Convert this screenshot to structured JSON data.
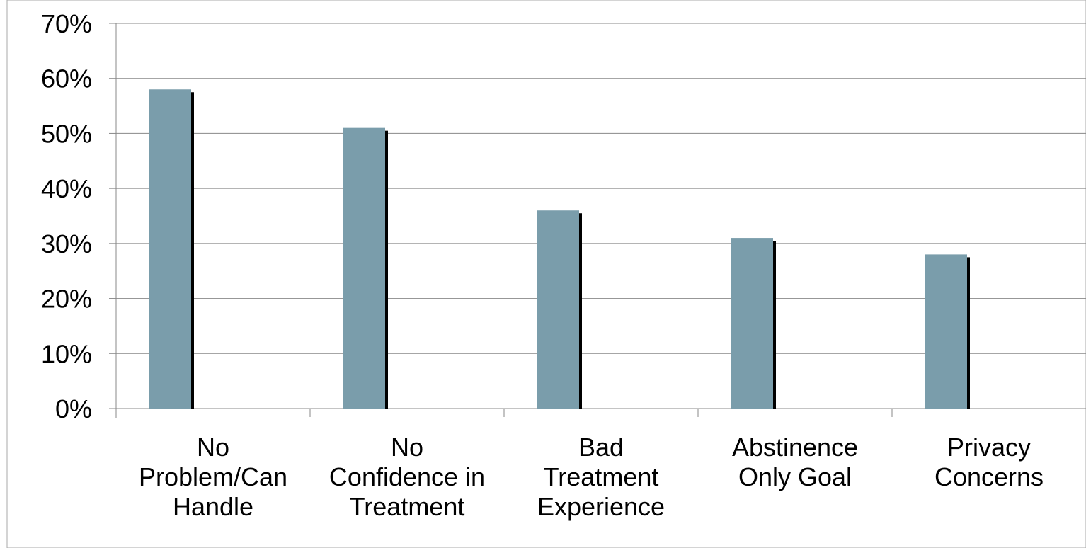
{
  "chart_data": {
    "type": "bar",
    "categories": [
      [
        "No",
        "Problem/Can",
        "Handle"
      ],
      [
        "No",
        "Confidence in",
        "Treatment"
      ],
      [
        "Bad",
        "Treatment",
        "Experience"
      ],
      [
        "Abstinence",
        "Only Goal"
      ],
      [
        "Privacy",
        "Concerns"
      ]
    ],
    "values": [
      58,
      51,
      36,
      31,
      28
    ],
    "ylim": [
      0,
      70
    ],
    "y_ticks": [
      0,
      10,
      20,
      30,
      40,
      50,
      60,
      70
    ],
    "y_tick_format": "percent",
    "grid": true,
    "bar_color": "#7a9dab",
    "shadow_color": "#000000",
    "grid_color": "#888888",
    "axis_color": "#888888",
    "border_color": "#aaaaaa"
  }
}
